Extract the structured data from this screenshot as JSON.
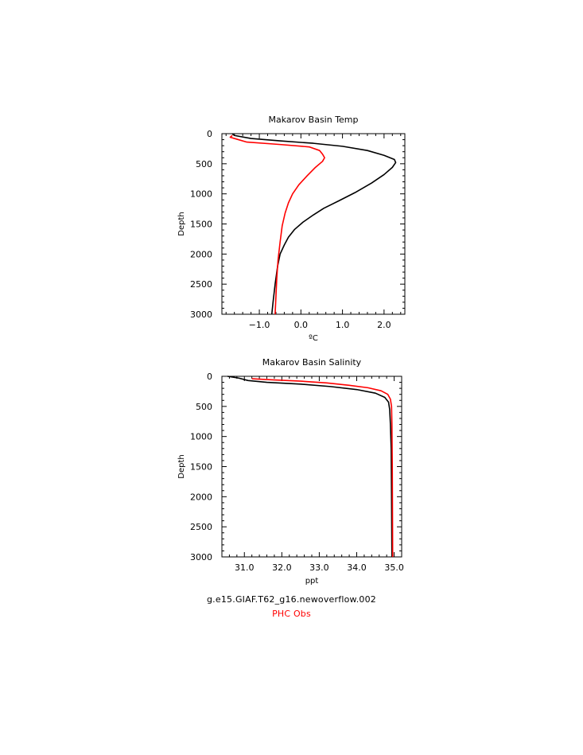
{
  "chart_data": [
    {
      "type": "line",
      "title": "Makarov Basin Temp",
      "xlabel": "ºC",
      "ylabel": "Depth",
      "xlim": [
        -1.9,
        2.5
      ],
      "ylim": [
        3000,
        0
      ],
      "xticks": [
        -1.0,
        0.0,
        1.0,
        2.0
      ],
      "xtick_labels": [
        "−1.0",
        "0.0",
        "1.0",
        "2.0"
      ],
      "yticks": [
        0,
        500,
        1000,
        1500,
        2000,
        2500,
        3000
      ],
      "ytick_labels": [
        "0",
        "500",
        "1000",
        "1500",
        "2000",
        "2500",
        "3000"
      ],
      "grid": false,
      "series": [
        {
          "color": "#000000",
          "points": [
            [
              -1.65,
              5
            ],
            [
              -1.6,
              30
            ],
            [
              -1.2,
              80
            ],
            [
              -0.5,
              120
            ],
            [
              0.3,
              160
            ],
            [
              1.0,
              210
            ],
            [
              1.6,
              280
            ],
            [
              2.0,
              360
            ],
            [
              2.25,
              430
            ],
            [
              2.28,
              480
            ],
            [
              2.2,
              560
            ],
            [
              2.0,
              680
            ],
            [
              1.7,
              820
            ],
            [
              1.3,
              980
            ],
            [
              0.9,
              1120
            ],
            [
              0.55,
              1240
            ],
            [
              0.3,
              1350
            ],
            [
              0.05,
              1470
            ],
            [
              -0.15,
              1590
            ],
            [
              -0.3,
              1720
            ],
            [
              -0.4,
              1850
            ],
            [
              -0.5,
              2000
            ],
            [
              -0.56,
              2200
            ],
            [
              -0.62,
              2500
            ],
            [
              -0.67,
              2800
            ],
            [
              -0.7,
              3000
            ]
          ]
        },
        {
          "color": "#ff0000",
          "points": [
            [
              -1.65,
              30
            ],
            [
              -1.7,
              60
            ],
            [
              -1.55,
              90
            ],
            [
              -1.3,
              140
            ],
            [
              -0.5,
              180
            ],
            [
              0.2,
              220
            ],
            [
              0.45,
              280
            ],
            [
              0.52,
              340
            ],
            [
              0.57,
              400
            ],
            [
              0.52,
              460
            ],
            [
              0.35,
              560
            ],
            [
              0.15,
              700
            ],
            [
              -0.05,
              850
            ],
            [
              -0.2,
              1000
            ],
            [
              -0.3,
              1150
            ],
            [
              -0.38,
              1320
            ],
            [
              -0.45,
              1530
            ],
            [
              -0.5,
              1800
            ],
            [
              -0.55,
              2100
            ],
            [
              -0.58,
              2400
            ],
            [
              -0.6,
              2700
            ],
            [
              -0.62,
              3000
            ]
          ]
        }
      ]
    },
    {
      "type": "line",
      "title": "Makarov Basin Salinity",
      "xlabel": "ppt",
      "ylabel": "Depth",
      "xlim": [
        30.4,
        35.2
      ],
      "ylim": [
        3000,
        0
      ],
      "xticks": [
        31.0,
        32.0,
        33.0,
        34.0,
        35.0
      ],
      "xtick_labels": [
        "31.0",
        "32.0",
        "33.0",
        "34.0",
        "35.0"
      ],
      "yticks": [
        0,
        500,
        1000,
        1500,
        2000,
        2500,
        3000
      ],
      "ytick_labels": [
        "0",
        "500",
        "1000",
        "1500",
        "2000",
        "2500",
        "3000"
      ],
      "grid": false,
      "series": [
        {
          "color": "#000000",
          "points": [
            [
              30.55,
              0
            ],
            [
              30.85,
              30
            ],
            [
              31.1,
              70
            ],
            [
              31.6,
              100
            ],
            [
              32.5,
              130
            ],
            [
              33.3,
              170
            ],
            [
              34.0,
              220
            ],
            [
              34.5,
              280
            ],
            [
              34.75,
              350
            ],
            [
              34.85,
              430
            ],
            [
              34.88,
              550
            ],
            [
              34.9,
              800
            ],
            [
              34.92,
              1200
            ],
            [
              34.93,
              2000
            ],
            [
              34.94,
              3000
            ]
          ]
        },
        {
          "color": "#ff0000",
          "points": [
            [
              31.2,
              40
            ],
            [
              31.8,
              60
            ],
            [
              32.5,
              80
            ],
            [
              33.2,
              110
            ],
            [
              33.8,
              150
            ],
            [
              34.3,
              190
            ],
            [
              34.65,
              240
            ],
            [
              34.83,
              300
            ],
            [
              34.9,
              380
            ],
            [
              34.93,
              500
            ],
            [
              34.94,
              800
            ],
            [
              34.95,
              1500
            ],
            [
              34.96,
              3000
            ]
          ]
        }
      ]
    }
  ],
  "legend": {
    "line1": {
      "text": "g.e15.GIAF.T62_g16.newoverflow.002",
      "color": "#000000"
    },
    "line2": {
      "text": "PHC Obs",
      "color": "#ff0000"
    }
  }
}
